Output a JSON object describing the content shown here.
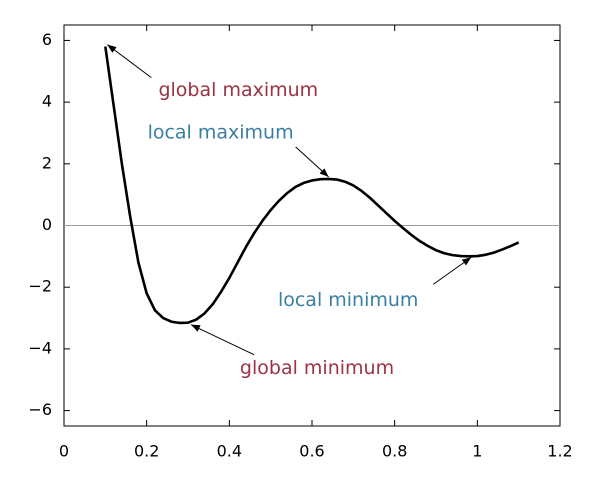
{
  "chart_data": {
    "type": "line",
    "x": [
      0.1,
      0.12,
      0.14,
      0.16,
      0.18,
      0.2,
      0.22,
      0.24,
      0.26,
      0.28,
      0.3,
      0.32,
      0.34,
      0.36,
      0.38,
      0.4,
      0.42,
      0.44,
      0.46,
      0.48,
      0.5,
      0.52,
      0.54,
      0.56,
      0.58,
      0.6,
      0.62,
      0.64,
      0.66,
      0.68,
      0.7,
      0.72,
      0.74,
      0.76,
      0.78,
      0.8,
      0.82,
      0.84,
      0.86,
      0.88,
      0.9,
      0.92,
      0.94,
      0.96,
      0.98,
      1.0,
      1.02,
      1.04,
      1.06,
      1.08,
      1.1
    ],
    "y": [
      5.8,
      3.9,
      2.0,
      0.3,
      -1.2,
      -2.2,
      -2.75,
      -3.0,
      -3.12,
      -3.16,
      -3.15,
      -3.05,
      -2.85,
      -2.55,
      -2.15,
      -1.7,
      -1.2,
      -0.7,
      -0.25,
      0.15,
      0.5,
      0.8,
      1.05,
      1.25,
      1.38,
      1.46,
      1.5,
      1.51,
      1.49,
      1.42,
      1.3,
      1.12,
      0.9,
      0.65,
      0.4,
      0.15,
      -0.08,
      -0.3,
      -0.5,
      -0.66,
      -0.8,
      -0.9,
      -0.96,
      -0.99,
      -1.0,
      -0.99,
      -0.95,
      -0.88,
      -0.78,
      -0.67,
      -0.55
    ],
    "color": "#000000",
    "xlim": [
      0,
      1.2
    ],
    "xticks": [
      0,
      0.2,
      0.4,
      0.6,
      0.8,
      1,
      1.2
    ],
    "ylim": [
      -6.5,
      6.5
    ],
    "yticks": [
      {
        "value": -6,
        "label": "−6"
      },
      {
        "value": -4,
        "label": "−4"
      },
      {
        "value": -2,
        "label": "−2"
      },
      0,
      2,
      4,
      6
    ],
    "hline": 0,
    "annotations": [
      {
        "text": "global maximum",
        "x": 0.1,
        "y": 5.8,
        "color": "#9b3344"
      },
      {
        "text": "local maximum",
        "x": 0.645,
        "y": 1.51,
        "color": "#3a7fa3"
      },
      {
        "text": "local minimum",
        "x": 0.99,
        "y": -1.0,
        "color": "#3a7fa3"
      },
      {
        "text": "global minimum",
        "x": 0.3,
        "y": -3.15,
        "color": "#9b3344"
      }
    ]
  }
}
